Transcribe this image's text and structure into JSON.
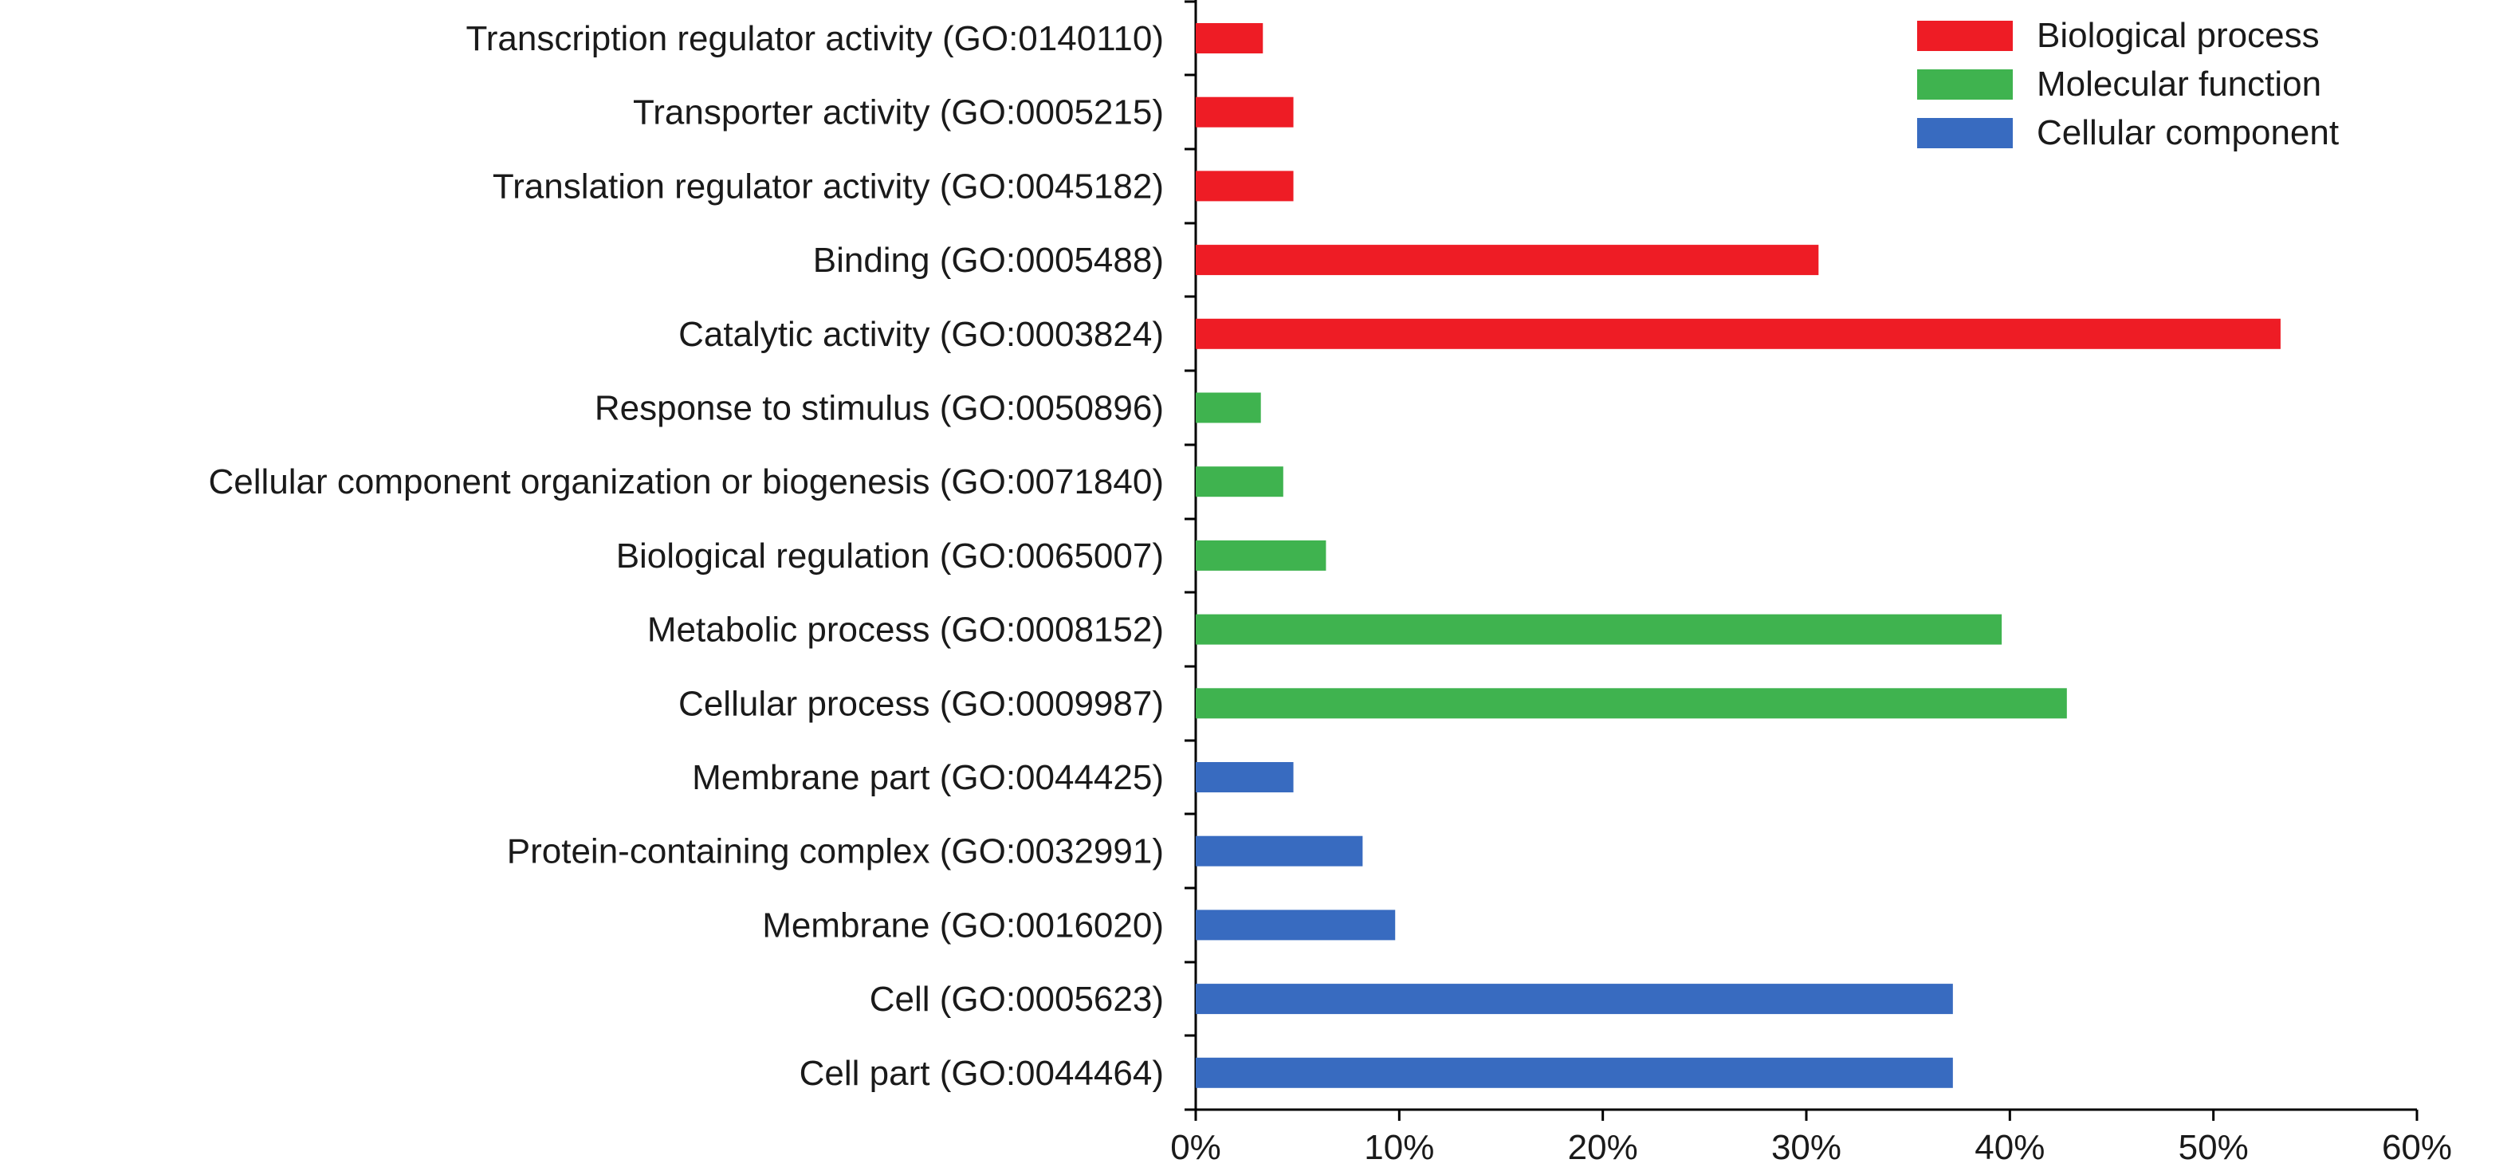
{
  "chart_data": {
    "type": "bar",
    "orientation": "horizontal",
    "title": "",
    "xlabel": "",
    "ylabel": "",
    "xlim": [
      0,
      60
    ],
    "x_ticks": [
      "0%",
      "10%",
      "20%",
      "30%",
      "40%",
      "50%",
      "60%"
    ],
    "grid": false,
    "legend_position": "top-right",
    "legend": [
      {
        "name": "Biological process",
        "color": "#ee1c25"
      },
      {
        "name": "Molecular function",
        "color": "#3fb34f"
      },
      {
        "name": "Cellular component",
        "color": "#386bc0"
      }
    ],
    "bars": [
      {
        "label": "Transcription regulator activity (GO:0140110)",
        "value": 3.3,
        "group": 0
      },
      {
        "label": "Transporter activity (GO:0005215)",
        "value": 4.8,
        "group": 0
      },
      {
        "label": "Translation regulator activity (GO:0045182)",
        "value": 4.8,
        "group": 0
      },
      {
        "label": "Binding (GO:0005488)",
        "value": 30.6,
        "group": 0
      },
      {
        "label": "Catalytic activity (GO:0003824)",
        "value": 53.3,
        "group": 0
      },
      {
        "label": "Response to stimulus (GO:0050896)",
        "value": 3.2,
        "group": 1
      },
      {
        "label": "Cellular component organization or biogenesis (GO:0071840)",
        "value": 4.3,
        "group": 1
      },
      {
        "label": "Biological regulation (GO:0065007)",
        "value": 6.4,
        "group": 1
      },
      {
        "label": "Metabolic process (GO:0008152)",
        "value": 39.6,
        "group": 1
      },
      {
        "label": "Cellular process (GO:0009987)",
        "value": 42.8,
        "group": 1
      },
      {
        "label": "Membrane part (GO:0044425)",
        "value": 4.8,
        "group": 2
      },
      {
        "label": "Protein-containing complex (GO:0032991)",
        "value": 8.2,
        "group": 2
      },
      {
        "label": "Membrane (GO:0016020)",
        "value": 9.8,
        "group": 2
      },
      {
        "label": "Cell (GO:0005623)",
        "value": 37.2,
        "group": 2
      },
      {
        "label": "Cell part (GO:0044464)",
        "value": 37.2,
        "group": 2
      }
    ]
  }
}
